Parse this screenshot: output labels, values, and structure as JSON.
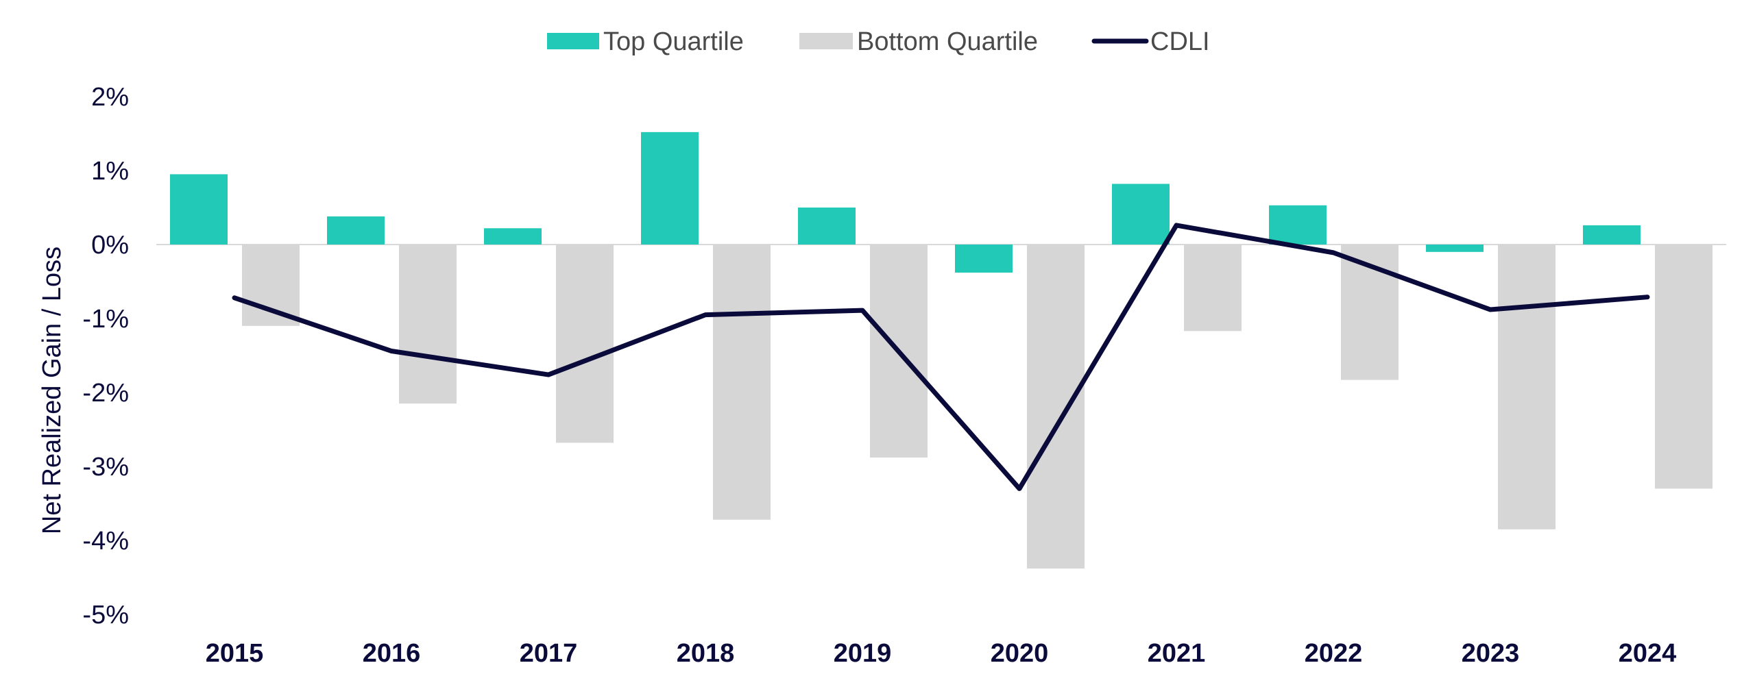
{
  "chart_data": {
    "type": "bar",
    "categories": [
      "2015",
      "2016",
      "2017",
      "2018",
      "2019",
      "2020",
      "2021",
      "2022",
      "2023",
      "2024"
    ],
    "series": [
      {
        "name": "Top Quartile",
        "kind": "bar",
        "color": "#22c9b6",
        "values": [
          0.95,
          0.38,
          0.22,
          1.52,
          0.5,
          -0.38,
          0.82,
          0.53,
          -0.1,
          0.26
        ]
      },
      {
        "name": "Bottom Quartile",
        "kind": "bar",
        "color": "#d6d6d6",
        "values": [
          -1.1,
          -2.15,
          -2.68,
          -3.72,
          -2.88,
          -4.38,
          -1.17,
          -1.83,
          -3.85,
          -3.3
        ]
      },
      {
        "name": "CDLI",
        "kind": "line",
        "color": "#0b0b3b",
        "values": [
          -0.72,
          -1.44,
          -1.76,
          -0.95,
          -0.89,
          -3.3,
          0.26,
          -0.11,
          -0.88,
          -0.71
        ]
      }
    ],
    "ylabel": "Net Realized Gain / Loss",
    "xlabel": "",
    "ylim": [
      -5,
      2
    ],
    "yticks": [
      "2%",
      "1%",
      "0%",
      "-1%",
      "-2%",
      "-3%",
      "-4%",
      "-5%"
    ],
    "ytick_values": [
      2,
      1,
      0,
      -1,
      -2,
      -3,
      -4,
      -5
    ],
    "grid": false,
    "legend_position": "top-center"
  }
}
